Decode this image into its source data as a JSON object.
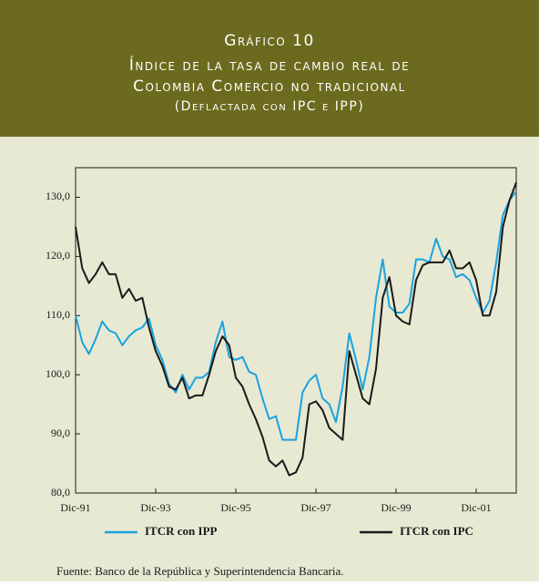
{
  "chart_data": {
    "type": "line",
    "title": "Gráfico 10",
    "subtitle": [
      "Índice de la tasa de cambio real de",
      "Colombia Comercio no tradicional",
      "(Deflactada con IPC e IPP)"
    ],
    "categories": [
      "Dic-91",
      null,
      null,
      null,
      null,
      null,
      null,
      null,
      null,
      null,
      null,
      null,
      "Dic-93",
      null,
      null,
      null,
      null,
      null,
      null,
      null,
      null,
      null,
      null,
      null,
      "Dic-95",
      null,
      null,
      null,
      null,
      null,
      null,
      null,
      null,
      null,
      null,
      null,
      "Dic-97",
      null,
      null,
      null,
      null,
      null,
      null,
      null,
      null,
      null,
      null,
      null,
      "Dic-99",
      null,
      null,
      null,
      null,
      null,
      null,
      null,
      null,
      null,
      null,
      null,
      "Dic-01",
      null,
      null,
      null,
      null,
      null,
      null
    ],
    "series": [
      {
        "name": "ITCR con IPP",
        "color": "#1aa3e0",
        "values": [
          110,
          105.5,
          103.5,
          106,
          109,
          107.5,
          107,
          105,
          106.5,
          107.5,
          108,
          109.5,
          105,
          102.5,
          98.5,
          97,
          100,
          97.5,
          99.5,
          99.5,
          100.5,
          105.5,
          109,
          103,
          102.5,
          103,
          100.5,
          100,
          96,
          92.5,
          93,
          89,
          89,
          89,
          97,
          99,
          100,
          96,
          95,
          92,
          98,
          107,
          102.5,
          97.5,
          103,
          113,
          119.5,
          111.5,
          110.5,
          110.5,
          112,
          119.5,
          119.5,
          119,
          123,
          120,
          119.5,
          116.5,
          117,
          116,
          113,
          110.5,
          112.5,
          119,
          127,
          129.5,
          131
        ]
      },
      {
        "name": "ITCR con IPC",
        "color": "#1a1a1a",
        "values": [
          125,
          118,
          115.5,
          117,
          119,
          117,
          117,
          113,
          114.5,
          112.5,
          113,
          108,
          104,
          101.5,
          98,
          97.5,
          99.5,
          96,
          96.5,
          96.5,
          100,
          104,
          106.5,
          105,
          99.5,
          98,
          95,
          92.5,
          89.5,
          85.5,
          84.5,
          85.5,
          83,
          83.5,
          86,
          95,
          95.5,
          94,
          91,
          90,
          89,
          104,
          100,
          96,
          95,
          101,
          113,
          116.5,
          110,
          109,
          108.5,
          116,
          118.5,
          119,
          119,
          119,
          121,
          118,
          118,
          119,
          116,
          110,
          110,
          114,
          125,
          129.5,
          132.5
        ]
      }
    ],
    "ylim": [
      80,
      135
    ],
    "yticks": [
      {
        "value": 80,
        "label": "80,0"
      },
      {
        "value": 90,
        "label": "90,0"
      },
      {
        "value": 100,
        "label": "100,0"
      },
      {
        "value": 110,
        "label": "110,0"
      },
      {
        "value": 120,
        "label": "120,0"
      },
      {
        "value": 130,
        "label": "130,0"
      }
    ],
    "legend": "bottom",
    "source": "Fuente: Banco de la República y Superintendencia Bancaria."
  }
}
